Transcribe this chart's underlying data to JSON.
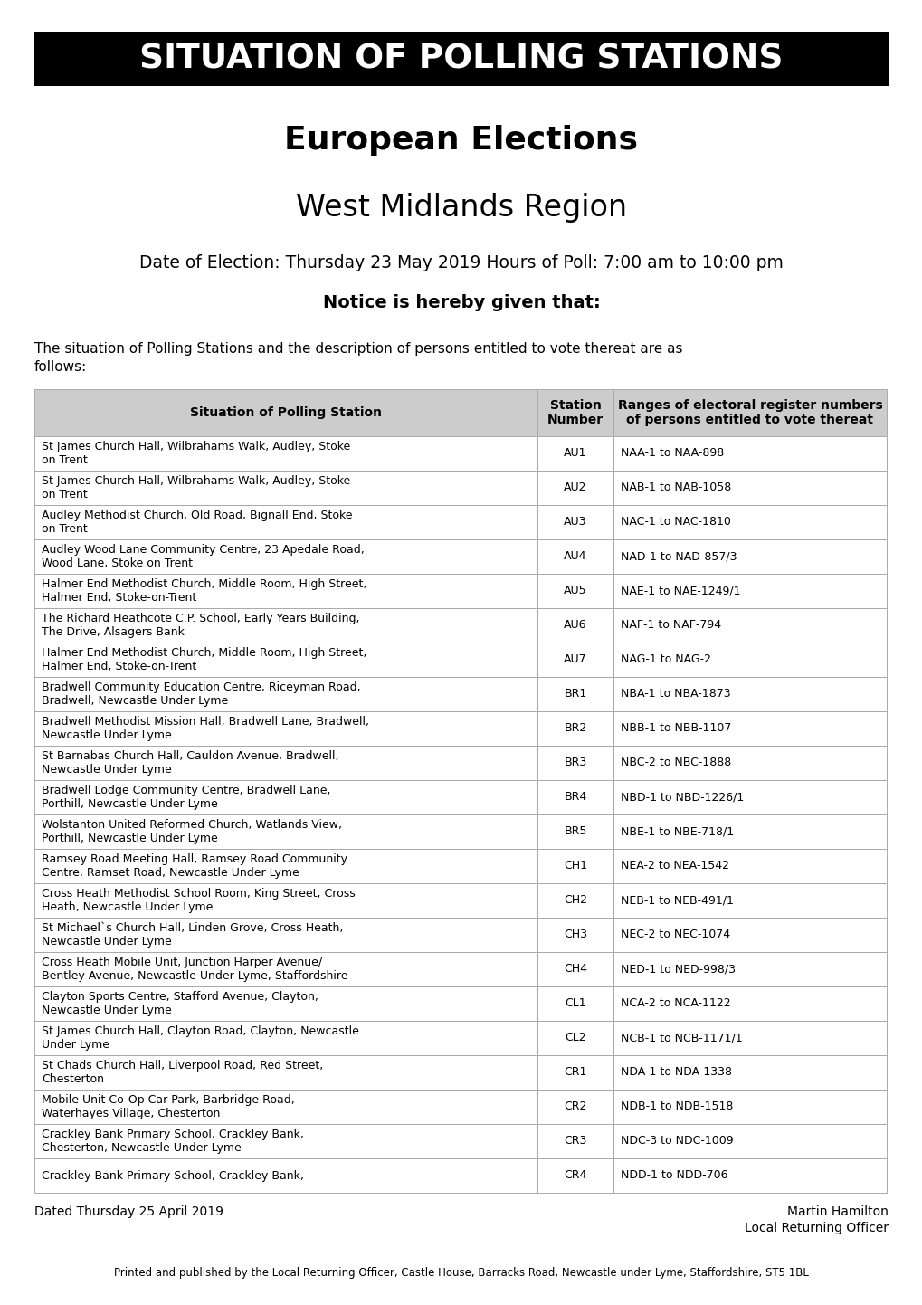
{
  "banner_text": "SITUATION OF POLLING STATIONS",
  "title1": "European Elections",
  "title2": "West Midlands Region",
  "date_line": "Date of Election: Thursday 23 May 2019 Hours of Poll: 7:00 am to 10:00 pm",
  "notice_text": "Notice is hereby given that:",
  "body_line1": "The situation of Polling Stations and the description of persons entitled to vote thereat are as",
  "body_line2": "follows:",
  "col_header0": "Situation of Polling Station",
  "col_header1": "Station\nNumber",
  "col_header2": "Ranges of electoral register numbers\nof persons entitled to vote thereat",
  "rows": [
    [
      "St James Church Hall, Wilbrahams Walk, Audley, Stoke\non Trent",
      "AU1",
      "NAA-1 to NAA-898"
    ],
    [
      "St James Church Hall, Wilbrahams Walk, Audley, Stoke\non Trent",
      "AU2",
      "NAB-1 to NAB-1058"
    ],
    [
      "Audley Methodist Church, Old Road, Bignall End, Stoke\non Trent",
      "AU3",
      "NAC-1 to NAC-1810"
    ],
    [
      "Audley Wood Lane Community Centre, 23 Apedale Road,\nWood Lane, Stoke on Trent",
      "AU4",
      "NAD-1 to NAD-857/3"
    ],
    [
      "Halmer End Methodist Church, Middle Room, High Street,\nHalmer End, Stoke-on-Trent",
      "AU5",
      "NAE-1 to NAE-1249/1"
    ],
    [
      "The Richard Heathcote C.P. School, Early Years Building,\nThe Drive, Alsagers Bank",
      "AU6",
      "NAF-1 to NAF-794"
    ],
    [
      "Halmer End Methodist Church, Middle Room, High Street,\nHalmer End, Stoke-on-Trent",
      "AU7",
      "NAG-1 to NAG-2"
    ],
    [
      "Bradwell Community Education Centre, Riceyman Road,\nBradwell, Newcastle Under Lyme",
      "BR1",
      "NBA-1 to NBA-1873"
    ],
    [
      "Bradwell Methodist Mission Hall, Bradwell Lane, Bradwell,\nNewcastle Under Lyme",
      "BR2",
      "NBB-1 to NBB-1107"
    ],
    [
      "St Barnabas Church Hall, Cauldon Avenue, Bradwell,\nNewcastle Under Lyme",
      "BR3",
      "NBC-2 to NBC-1888"
    ],
    [
      "Bradwell Lodge Community Centre, Bradwell Lane,\nPorthill, Newcastle Under Lyme",
      "BR4",
      "NBD-1 to NBD-1226/1"
    ],
    [
      "Wolstanton United Reformed Church, Watlands View,\nPorthill, Newcastle Under Lyme",
      "BR5",
      "NBE-1 to NBE-718/1"
    ],
    [
      "Ramsey Road Meeting Hall, Ramsey Road Community\nCentre, Ramset Road, Newcastle Under Lyme",
      "CH1",
      "NEA-2 to NEA-1542"
    ],
    [
      "Cross Heath Methodist School Room, King Street, Cross\nHeath, Newcastle Under Lyme",
      "CH2",
      "NEB-1 to NEB-491/1"
    ],
    [
      "St Michael`s Church Hall, Linden Grove, Cross Heath,\nNewcastle Under Lyme",
      "CH3",
      "NEC-2 to NEC-1074"
    ],
    [
      "Cross Heath Mobile Unit, Junction Harper Avenue/\nBentley Avenue, Newcastle Under Lyme, Staffordshire",
      "CH4",
      "NED-1 to NED-998/3"
    ],
    [
      "Clayton Sports Centre, Stafford Avenue, Clayton,\nNewcastle Under Lyme",
      "CL1",
      "NCA-2 to NCA-1122"
    ],
    [
      "St James Church Hall, Clayton Road, Clayton, Newcastle\nUnder Lyme",
      "CL2",
      "NCB-1 to NCB-1171/1"
    ],
    [
      "St Chads Church Hall, Liverpool Road, Red Street,\nChesterton",
      "CR1",
      "NDA-1 to NDA-1338"
    ],
    [
      "Mobile Unit Co-Op Car Park, Barbridge Road,\nWaterhayes Village, Chesterton",
      "CR2",
      "NDB-1 to NDB-1518"
    ],
    [
      "Crackley Bank Primary School, Crackley Bank,\nChesterton, Newcastle Under Lyme",
      "CR3",
      "NDC-3 to NDC-1009"
    ],
    [
      "Crackley Bank Primary School, Crackley Bank,",
      "CR4",
      "NDD-1 to NDD-706"
    ]
  ],
  "footer_left": "Dated Thursday 25 April 2019",
  "footer_right_1": "Martin Hamilton",
  "footer_right_2": "Local Returning Officer",
  "small_pre": "Printed and published by the ",
  "small_bold": "Local Returning Officer",
  "small_post": ", Castle House, Barracks Road, Newcastle under Lyme, Staffordshire, ST5 1BL",
  "banner_bg": "#000000",
  "banner_fg": "#ffffff",
  "header_bg": "#cccccc",
  "page_bg": "#ffffff",
  "border_color": "#aaaaaa"
}
